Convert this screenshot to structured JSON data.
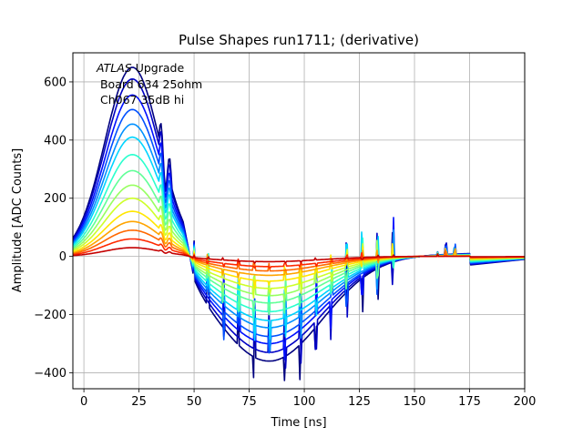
{
  "chart_data": {
    "type": "line",
    "title": "Pulse Shapes run1711; (derivative)",
    "xlabel": "Time [ns]",
    "ylabel": "Amplitude [ADC Counts]",
    "xlim": [
      -5,
      200
    ],
    "ylim": [
      -455,
      700
    ],
    "xticks": [
      0,
      25,
      50,
      75,
      100,
      125,
      150,
      175,
      200
    ],
    "yticks": [
      -400,
      -200,
      0,
      200,
      400,
      600
    ],
    "grid": true,
    "annotation": {
      "atlas": "ATLAS",
      "atlas_suffix": " Upgrade",
      "line2": " Board 634 25ohm",
      "line3": " Ch067 35dB hi"
    },
    "colormap": "jet",
    "series": [
      {
        "color": "#00007f",
        "peak": 650,
        "trough": -360
      },
      {
        "color": "#0000c4",
        "peak": 610,
        "trough": -330
      },
      {
        "color": "#0010ff",
        "peak": 555,
        "trough": -300
      },
      {
        "color": "#0050ff",
        "peak": 505,
        "trough": -275
      },
      {
        "color": "#0090ff",
        "peak": 455,
        "trough": -245
      },
      {
        "color": "#00d4ff",
        "peak": 410,
        "trough": -220
      },
      {
        "color": "#29ffce",
        "peak": 350,
        "trough": -190
      },
      {
        "color": "#60ff97",
        "peak": 295,
        "trough": -160
      },
      {
        "color": "#97ff60",
        "peak": 245,
        "trough": -135
      },
      {
        "color": "#ceff29",
        "peak": 200,
        "trough": -110
      },
      {
        "color": "#ffe600",
        "peak": 155,
        "trough": -85
      },
      {
        "color": "#ffa400",
        "peak": 120,
        "trough": -65
      },
      {
        "color": "#ff6800",
        "peak": 90,
        "trough": -50
      },
      {
        "color": "#ff2900",
        "peak": 60,
        "trough": -35
      },
      {
        "color": "#c40000",
        "peak": 30,
        "trough": -18
      }
    ]
  }
}
